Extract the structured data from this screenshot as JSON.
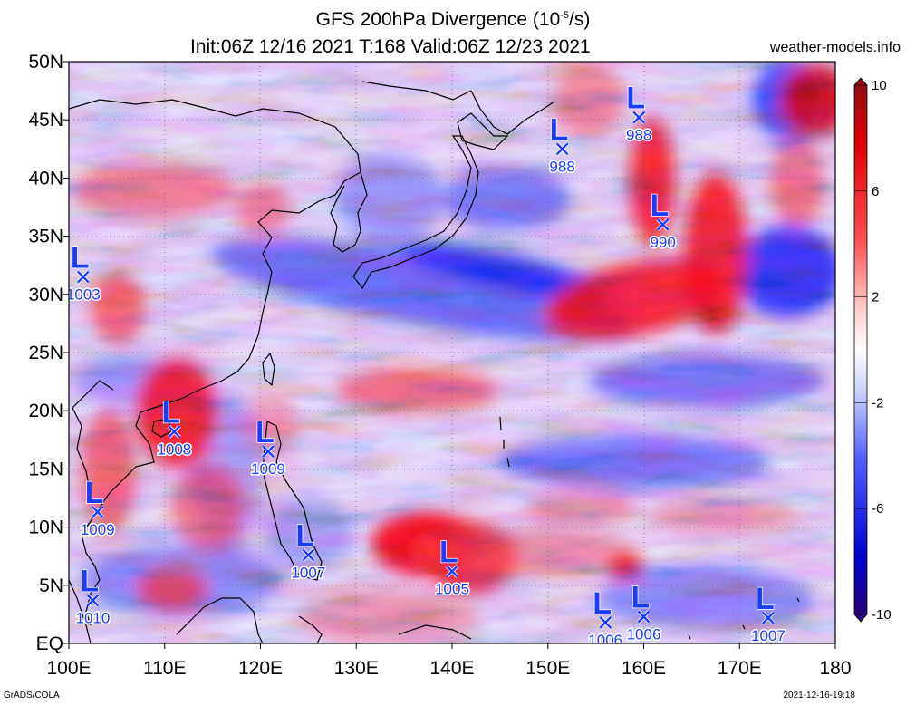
{
  "header": {
    "title_prefix": "GFS 200hPa Divergence (10",
    "title_exp": "-5",
    "title_suffix": "/s)",
    "subtitle": "Init:06Z 12/16 2021 T:168 Valid:06Z 12/23 2021",
    "site": "weather-models.info"
  },
  "footer": {
    "credit": "GrADS/COLA",
    "timestamp": "2021-12-16-19:18"
  },
  "map": {
    "lon_range": [
      100,
      180
    ],
    "lat_range": [
      0,
      50
    ],
    "lat_labels": [
      "EQ",
      "5N",
      "10N",
      "15N",
      "20N",
      "25N",
      "30N",
      "35N",
      "40N",
      "45N",
      "50N"
    ],
    "lon_labels": [
      "100E",
      "110E",
      "120E",
      "130E",
      "140E",
      "150E",
      "160E",
      "170E",
      "180"
    ],
    "grid": "dotted, every 5 degrees latitude and 10 degrees longitude",
    "colors": {
      "divergence": "#ff0000",
      "convergence": "#0000ff",
      "low_marker": "#1a3cff"
    }
  },
  "colorbar": {
    "labels": [
      "10",
      "6",
      "2",
      "-2",
      "-6",
      "-10"
    ],
    "range": [
      -10,
      10
    ],
    "gradient": [
      "#a01018",
      "#ff0000",
      "#ff9a9a",
      "#ffffff",
      "#9aa6ff",
      "#0000ff",
      "#300080"
    ]
  },
  "lows": [
    {
      "lon": 101.5,
      "lat": 31.5,
      "pressure": "1003"
    },
    {
      "lon": 151.5,
      "lat": 42.5,
      "pressure": "988"
    },
    {
      "lon": 159.5,
      "lat": 45.2,
      "pressure": "988"
    },
    {
      "lon": 162.0,
      "lat": 36.0,
      "pressure": "990"
    },
    {
      "lon": 111.0,
      "lat": 18.2,
      "pressure": "1008"
    },
    {
      "lon": 120.8,
      "lat": 16.5,
      "pressure": "1009"
    },
    {
      "lon": 103.0,
      "lat": 11.3,
      "pressure": "1009"
    },
    {
      "lon": 125.0,
      "lat": 7.6,
      "pressure": "1007"
    },
    {
      "lon": 140.0,
      "lat": 6.2,
      "pressure": "1005"
    },
    {
      "lon": 102.5,
      "lat": 3.7,
      "pressure": "1010"
    },
    {
      "lon": 156.0,
      "lat": 1.8,
      "pressure": "1006"
    },
    {
      "lon": 160.0,
      "lat": 2.3,
      "pressure": "1006"
    },
    {
      "lon": 173.0,
      "lat": 2.2,
      "pressure": "1007"
    }
  ]
}
